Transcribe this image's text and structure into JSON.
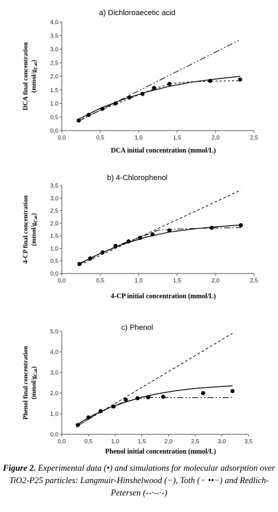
{
  "caption": {
    "label": "Figure 2.",
    "text": " Experimental data (•) and simulations for molecular adsorption over TiO2-P25 particles: Langmuir-Hinshelwood (−), Toth (− ••−) and Redlich-Petersen (--·--·-)"
  },
  "chart_data": [
    {
      "type": "scatter",
      "title": "a) Dichloroaecetic acid",
      "xlabel": "DCA initial concentration (mmol/L)",
      "ylabel_main": "DCA final concentration",
      "ylabel_unit": "(mmol/g",
      "ylabel_sub": "Cat",
      "xlim": [
        0,
        2.5
      ],
      "xticks": [
        0,
        0.5,
        1,
        1.5,
        2,
        2.5
      ],
      "xtick_labels": [
        "0,0",
        "0,5",
        "1,0",
        "1,5",
        "2,0",
        "2,5"
      ],
      "ylim": [
        0,
        4
      ],
      "yticks": [
        0,
        0.5,
        1,
        1.5,
        2,
        2.5,
        3,
        3.5,
        4
      ],
      "ytick_labels": [
        "0,0",
        "0,5",
        "1,0",
        "1,5",
        "2,0",
        "2,5",
        "3,0",
        "3,5",
        "4,0"
      ],
      "x": [
        0.22,
        0.35,
        0.53,
        0.7,
        0.88,
        1.05,
        1.2,
        1.4,
        1.93,
        2.32
      ],
      "y": [
        0.37,
        0.58,
        0.8,
        1.0,
        1.22,
        1.35,
        1.57,
        1.72,
        1.83,
        1.88
      ],
      "series": [
        {
          "x": [
            0.22,
            0.5,
            0.8,
            1.1,
            1.4,
            1.7,
            2.0,
            2.32
          ],
          "values": [
            0.42,
            0.82,
            1.15,
            1.42,
            1.63,
            1.79,
            1.9,
            2.0
          ],
          "style": "solid"
        },
        {
          "x": [
            0.22,
            0.5,
            0.8,
            1.1,
            1.4,
            1.7,
            2.0,
            2.32
          ],
          "values": [
            0.37,
            0.75,
            1.09,
            1.43,
            1.72,
            1.8,
            1.82,
            1.84
          ],
          "style": "dotted"
        },
        {
          "x": [
            0.22,
            2.32
          ],
          "values": [
            0.35,
            3.35
          ],
          "style": "dashdotdot"
        }
      ]
    },
    {
      "type": "scatter",
      "title": "b) 4-Chlorophenol",
      "xlabel": "4-CP initial concentration (mmol/L)",
      "ylabel_main": "4-CP final concentration",
      "ylabel_unit": "(mmol/g",
      "ylabel_sub": "Cat",
      "xlim": [
        0,
        2.5
      ],
      "xticks": [
        0,
        0.5,
        1,
        1.5,
        2,
        2.5
      ],
      "xtick_labels": [
        "0,0",
        "0,5",
        "1,0",
        "1,5",
        "2,0",
        "2,5"
      ],
      "ylim": [
        0,
        3.5
      ],
      "yticks": [
        0,
        0.5,
        1,
        1.5,
        2,
        2.5,
        3,
        3.5
      ],
      "ytick_labels": [
        "0,0",
        "0,5",
        "1,0",
        "1,5",
        "2,0",
        "2,5",
        "3,0",
        "3,5"
      ],
      "x": [
        0.23,
        0.37,
        0.53,
        0.7,
        0.87,
        1.02,
        1.18,
        1.4,
        1.95,
        2.33
      ],
      "y": [
        0.38,
        0.6,
        0.84,
        1.1,
        1.28,
        1.42,
        1.56,
        1.72,
        1.82,
        1.92
      ],
      "series": [
        {
          "x": [
            0.23,
            0.5,
            0.8,
            1.1,
            1.4,
            1.7,
            2.0,
            2.33
          ],
          "values": [
            0.4,
            0.8,
            1.17,
            1.45,
            1.65,
            1.77,
            1.86,
            1.93
          ],
          "style": "solid"
        },
        {
          "x": [
            0.23,
            0.5,
            0.8,
            1.1,
            1.25,
            1.5,
            1.8,
            2.0,
            2.33
          ],
          "values": [
            0.38,
            0.79,
            1.2,
            1.53,
            1.72,
            1.77,
            1.8,
            1.81,
            1.83
          ],
          "style": "dashdot"
        },
        {
          "x": [
            0.23,
            2.33
          ],
          "values": [
            0.34,
            3.32
          ],
          "style": "dashed"
        }
      ]
    },
    {
      "type": "scatter",
      "title": "c) Phenol",
      "xlabel": "Phenol initial concentration (mmol/L)",
      "ylabel_main": "Phenol final concentration",
      "ylabel_unit": "(mmol/g",
      "ylabel_sub": "Cat",
      "xlim": [
        0,
        3.5
      ],
      "xticks": [
        0,
        0.5,
        1,
        1.5,
        2,
        2.5,
        3,
        3.5
      ],
      "xtick_labels": [
        "0,0",
        "0,5",
        "1,0",
        "1,5",
        "2,0",
        "2,5",
        "3,0",
        "3,5"
      ],
      "ylim": [
        0,
        5
      ],
      "yticks": [
        0,
        1,
        2,
        3,
        4,
        5
      ],
      "ytick_labels": [
        "0,0",
        "1,0",
        "2,0",
        "3,0",
        "4,0",
        "5,0"
      ],
      "x": [
        0.3,
        0.5,
        0.73,
        0.97,
        1.2,
        1.42,
        1.62,
        1.9,
        2.65,
        3.2
      ],
      "y": [
        0.45,
        0.82,
        1.13,
        1.35,
        1.68,
        1.75,
        1.8,
        1.82,
        2.0,
        2.1
      ],
      "series": [
        {
          "x": [
            0.3,
            0.6,
            0.9,
            1.2,
            1.5,
            1.8,
            2.1,
            2.4,
            2.7,
            3.2
          ],
          "values": [
            0.5,
            0.95,
            1.3,
            1.57,
            1.8,
            1.97,
            2.1,
            2.2,
            2.27,
            2.35
          ],
          "style": "solid"
        },
        {
          "x": [
            0.3,
            0.6,
            0.9,
            1.2,
            1.4,
            1.6,
            1.9,
            2.4,
            3.2
          ],
          "values": [
            0.42,
            0.9,
            1.3,
            1.6,
            1.72,
            1.78,
            1.78,
            1.78,
            1.78
          ],
          "style": "dashdotdot"
        },
        {
          "x": [
            0.3,
            3.2
          ],
          "values": [
            0.42,
            4.9
          ],
          "style": "dashed"
        }
      ]
    }
  ]
}
